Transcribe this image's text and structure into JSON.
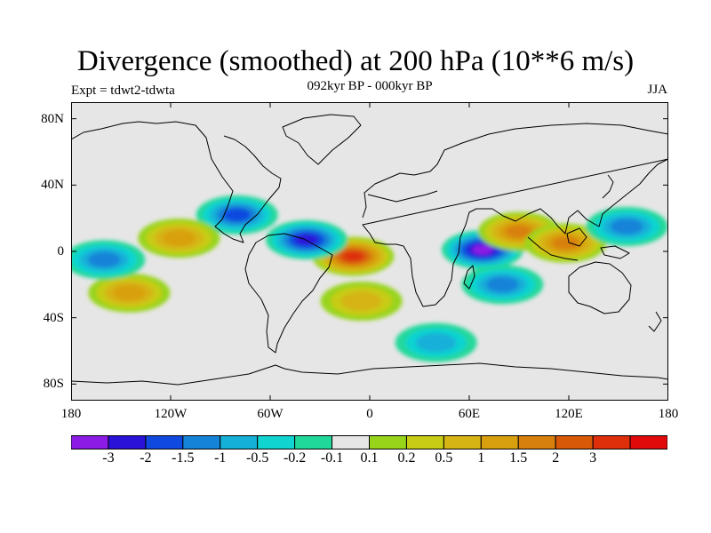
{
  "header": {
    "title": "Divergence (smoothed) at 200 hPa (10**6 m/s)",
    "subtitle": "092kyr BP - 000kyr BP",
    "experiment": "Expt = tdwt2-tdwta",
    "season": "JJA"
  },
  "map": {
    "projection": "cylindrical equidistant",
    "lon_range": [
      -180,
      180
    ],
    "lat_range": [
      -90,
      90
    ],
    "lat_ticks": [
      {
        "lat": 80,
        "label": "80N"
      },
      {
        "lat": 40,
        "label": "40N"
      },
      {
        "lat": 0,
        "label": "0"
      },
      {
        "lat": -40,
        "label": "40S"
      },
      {
        "lat": -80,
        "label": "80S"
      }
    ],
    "lon_ticks": [
      {
        "lon": -180,
        "label": "180"
      },
      {
        "lon": -120,
        "label": "120W"
      },
      {
        "lon": -60,
        "label": "60W"
      },
      {
        "lon": 0,
        "label": "0"
      },
      {
        "lon": 60,
        "label": "60E"
      },
      {
        "lon": 120,
        "label": "120E"
      },
      {
        "lon": 180,
        "label": "180"
      }
    ],
    "features": [
      {
        "name": "tropical-atlantic-positive-max",
        "lon": -10,
        "lat": -3,
        "value": 3
      },
      {
        "name": "arabian-sea-negative-min",
        "lon": 68,
        "lat": 1,
        "value": -3
      },
      {
        "name": "equatorial-atlantic-negative",
        "lon": -38,
        "lat": 7,
        "value": -2
      },
      {
        "name": "caribbean-negative",
        "lon": -80,
        "lat": 22,
        "value": -1.5
      },
      {
        "name": "east-pacific-positive",
        "lon": -115,
        "lat": 8,
        "value": 1
      },
      {
        "name": "south-pacific-positive-band",
        "lon": -145,
        "lat": -25,
        "value": 1
      },
      {
        "name": "bay-of-bengal-positive",
        "lon": 90,
        "lat": 12,
        "value": 1.5
      },
      {
        "name": "maritime-continent-positive",
        "lon": 118,
        "lat": 5,
        "value": 1.5
      },
      {
        "name": "south-indian-ocean-negative",
        "lon": 80,
        "lat": -20,
        "value": -1
      },
      {
        "name": "equatorial-pacific-negative",
        "lon": -160,
        "lat": -5,
        "value": -1
      },
      {
        "name": "west-pacific-negative",
        "lon": 155,
        "lat": 15,
        "value": -1
      },
      {
        "name": "south-atlantic-positive",
        "lon": -5,
        "lat": -30,
        "value": 0.5
      },
      {
        "name": "southern-ocean-negative-band",
        "lon": 40,
        "lat": -55,
        "value": -0.5
      }
    ]
  },
  "colorbar": {
    "colors": [
      "#8c1be6",
      "#2a12d8",
      "#1049e0",
      "#1483d8",
      "#14b0d8",
      "#10d4d0",
      "#20d89a",
      "#e6e6e6",
      "#98d41a",
      "#c8cc14",
      "#d6b414",
      "#d8a00e",
      "#d8800e",
      "#d85a08",
      "#de2e0a",
      "#e00a0a"
    ],
    "labels": [
      "-3",
      "-2",
      "-1.5",
      "-1",
      "-0.5",
      "-0.2",
      "-0.1",
      "0.1",
      "0.2",
      "0.5",
      "1",
      "1.5",
      "2",
      "3"
    ]
  }
}
